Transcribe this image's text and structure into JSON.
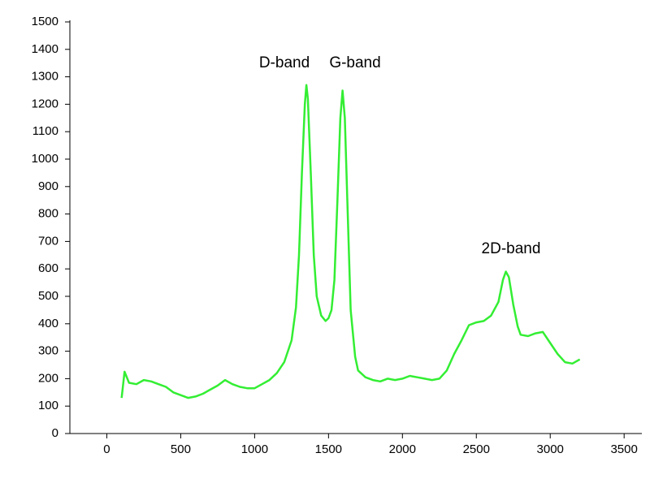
{
  "chart_data": {
    "type": "line",
    "annotations": [
      "D-band",
      "G-band",
      "2D-band"
    ],
    "x": [
      100,
      120,
      150,
      200,
      250,
      300,
      350,
      400,
      450,
      500,
      550,
      600,
      650,
      700,
      750,
      800,
      850,
      900,
      950,
      1000,
      1050,
      1100,
      1150,
      1200,
      1250,
      1280,
      1300,
      1320,
      1340,
      1350,
      1360,
      1380,
      1400,
      1420,
      1450,
      1480,
      1500,
      1520,
      1540,
      1560,
      1580,
      1595,
      1610,
      1630,
      1650,
      1680,
      1700,
      1750,
      1800,
      1850,
      1900,
      1950,
      2000,
      2050,
      2100,
      2150,
      2200,
      2250,
      2300,
      2350,
      2400,
      2450,
      2500,
      2550,
      2600,
      2650,
      2680,
      2700,
      2720,
      2750,
      2780,
      2800,
      2850,
      2900,
      2950,
      3000,
      3050,
      3100,
      3150,
      3200
    ],
    "series": [
      {
        "color": "#33ee33",
        "values": [
          130,
          225,
          185,
          180,
          195,
          190,
          180,
          170,
          150,
          140,
          130,
          135,
          145,
          160,
          175,
          195,
          180,
          170,
          165,
          165,
          180,
          195,
          220,
          260,
          340,
          460,
          650,
          950,
          1200,
          1270,
          1220,
          950,
          650,
          500,
          430,
          410,
          420,
          450,
          560,
          850,
          1150,
          1250,
          1150,
          800,
          450,
          280,
          230,
          205,
          195,
          190,
          200,
          195,
          200,
          210,
          205,
          200,
          195,
          200,
          230,
          290,
          340,
          395,
          405,
          410,
          430,
          480,
          560,
          590,
          570,
          470,
          390,
          360,
          355,
          365,
          370,
          330,
          290,
          260,
          255,
          270
        ]
      }
    ],
    "xlim": [
      -250,
      3620
    ],
    "ylim": [
      0,
      1500
    ],
    "xticks": [
      0,
      500,
      1000,
      1500,
      2000,
      2500,
      3000,
      3500
    ],
    "yticks": [
      0,
      100,
      200,
      300,
      400,
      500,
      600,
      700,
      800,
      900,
      1000,
      1100,
      1200,
      1300,
      1400,
      1500
    ]
  }
}
